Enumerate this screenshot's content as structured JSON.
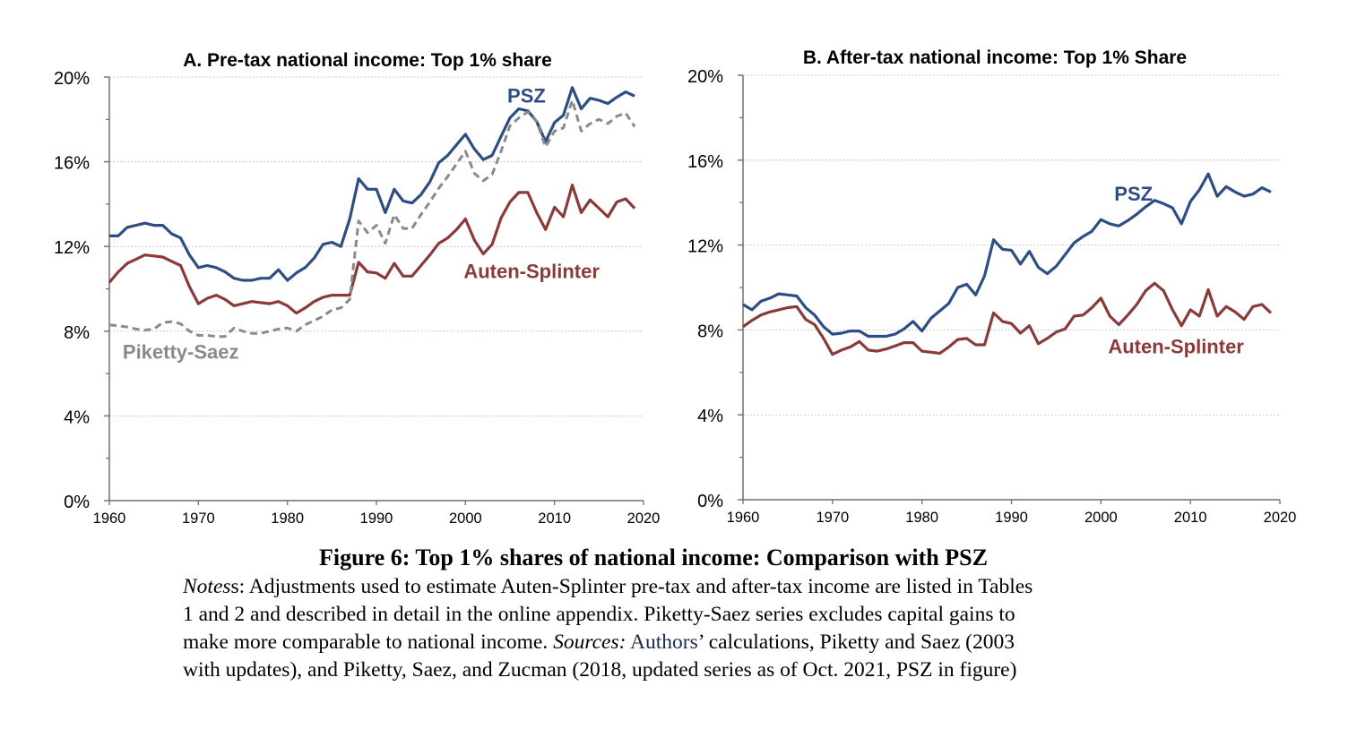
{
  "figure": {
    "title": "Figure 6: Top 1% shares of national income: Comparison with PSZ",
    "notes_label": "Notes",
    "notes_text_1": "s: Adjustments used to estimate Auten-Splinter pre-tax and after-tax income are listed in Tables",
    "notes_line_2": "1 and 2 and described in detail in the online appendix. Piketty-Saez series excludes capital gains to",
    "notes_line_3a": "make more comparable to national income. ",
    "sources_label": "Sources:",
    "notes_line_3b": " Authors",
    "notes_line_3c": "’ calculations, Piketty and Saez (2003",
    "notes_line_4": "with updates), and Piketty, Saez, and Zucman (2018, updated series as of Oct. 2021, PSZ in figure)"
  },
  "colors": {
    "psz": "#2e4d85",
    "auten_splinter": "#8b3a3a",
    "piketty_saez": "#8a8a8a",
    "axis": "#6e6e6e",
    "grid": "#c8c8c8"
  },
  "chart_data": [
    {
      "type": "line",
      "title": "A. Pre-tax national income: Top 1% share",
      "xlabel": "",
      "ylabel": "",
      "xlim": [
        1960,
        2020
      ],
      "ylim": [
        0,
        20
      ],
      "xticks": [
        1960,
        1970,
        1980,
        1990,
        2000,
        2010,
        2020
      ],
      "xtick_labels": [
        "1960",
        "1970",
        "1980",
        "1990",
        "2000",
        "2010",
        "2020"
      ],
      "yticks": [
        0,
        4,
        8,
        12,
        16,
        20
      ],
      "ytick_labels": [
        "0%",
        "4%",
        "8%",
        "12%",
        "16%",
        "20%"
      ],
      "yminor_ticks": [
        2,
        6,
        10,
        14,
        18
      ],
      "grid": "horizontal-dotted",
      "x": [
        1960,
        1961,
        1962,
        1963,
        1964,
        1965,
        1966,
        1967,
        1968,
        1969,
        1970,
        1971,
        1972,
        1973,
        1974,
        1975,
        1976,
        1977,
        1978,
        1979,
        1980,
        1981,
        1982,
        1983,
        1984,
        1985,
        1986,
        1987,
        1988,
        1989,
        1990,
        1991,
        1992,
        1993,
        1994,
        1995,
        1996,
        1997,
        1998,
        1999,
        2000,
        2001,
        2002,
        2003,
        2004,
        2005,
        2006,
        2007,
        2008,
        2009,
        2010,
        2011,
        2012,
        2013,
        2014,
        2015,
        2016,
        2017,
        2018,
        2019
      ],
      "series": [
        {
          "name": "PSZ",
          "style": "solid",
          "color_key": "psz",
          "label": "PSZ",
          "label_at": [
            2004.7,
            18.8
          ],
          "values": [
            12.5,
            12.5,
            12.9,
            13.0,
            13.1,
            13.0,
            13.0,
            12.6,
            12.4,
            11.6,
            11.0,
            11.1,
            11.0,
            10.8,
            10.5,
            10.4,
            10.4,
            10.5,
            10.5,
            10.9,
            10.4,
            10.75,
            11.0,
            11.45,
            12.1,
            12.2,
            12.0,
            13.3,
            15.2,
            14.7,
            14.7,
            13.6,
            14.7,
            14.15,
            14.05,
            14.45,
            15.05,
            15.95,
            16.3,
            16.8,
            17.3,
            16.6,
            16.1,
            16.3,
            17.2,
            18.07,
            18.5,
            18.4,
            17.9,
            16.95,
            17.85,
            18.2,
            19.5,
            18.5,
            19.0,
            18.9,
            18.75,
            19.05,
            19.3,
            19.1
          ]
        },
        {
          "name": "Auten-Splinter",
          "style": "solid",
          "color_key": "auten_splinter",
          "label": "Auten-Splinter",
          "label_at": [
            1999.8,
            10.5
          ],
          "values": [
            10.3,
            10.8,
            11.2,
            11.4,
            11.6,
            11.55,
            11.5,
            11.3,
            11.1,
            10.1,
            9.3,
            9.55,
            9.7,
            9.5,
            9.2,
            9.3,
            9.4,
            9.35,
            9.3,
            9.4,
            9.2,
            8.85,
            9.1,
            9.4,
            9.6,
            9.7,
            9.7,
            9.7,
            11.25,
            10.8,
            10.75,
            10.5,
            11.2,
            10.6,
            10.6,
            11.1,
            11.6,
            12.15,
            12.4,
            12.8,
            13.3,
            12.3,
            11.65,
            12.1,
            13.35,
            14.1,
            14.55,
            14.55,
            13.6,
            12.8,
            13.85,
            13.4,
            14.9,
            13.6,
            14.2,
            13.8,
            13.4,
            14.1,
            14.25,
            13.8
          ]
        },
        {
          "name": "Piketty-Saez",
          "style": "dashed",
          "color_key": "piketty_saez",
          "label": "Piketty-Saez",
          "label_at": [
            1961.5,
            6.7
          ],
          "values": [
            8.3,
            8.25,
            8.2,
            8.1,
            8.05,
            8.1,
            8.4,
            8.45,
            8.35,
            8.0,
            7.8,
            7.8,
            7.75,
            7.75,
            8.15,
            8.0,
            7.9,
            7.9,
            8.0,
            8.1,
            8.15,
            8.0,
            8.3,
            8.5,
            8.7,
            9.0,
            9.1,
            9.5,
            13.2,
            12.65,
            13.0,
            12.15,
            13.5,
            12.85,
            12.85,
            13.5,
            14.1,
            14.75,
            15.3,
            15.9,
            16.5,
            15.45,
            15.1,
            15.4,
            16.5,
            17.7,
            18.07,
            18.35,
            17.9,
            16.7,
            17.45,
            17.6,
            18.9,
            17.45,
            17.8,
            18.0,
            17.8,
            18.15,
            18.3,
            17.65
          ]
        }
      ]
    },
    {
      "type": "line",
      "title": "B. After-tax national income: Top 1% Share",
      "xlabel": "",
      "ylabel": "",
      "xlim": [
        1960,
        2020
      ],
      "ylim": [
        0,
        20
      ],
      "xticks": [
        1960,
        1970,
        1980,
        1990,
        2000,
        2010,
        2020
      ],
      "xtick_labels": [
        "1960",
        "1970",
        "1980",
        "1990",
        "2000",
        "2010",
        "2020"
      ],
      "yticks": [
        0,
        4,
        8,
        12,
        16,
        20
      ],
      "ytick_labels": [
        "0%",
        "4%",
        "8%",
        "12%",
        "16%",
        "20%"
      ],
      "yminor_ticks": [
        2,
        6,
        10,
        14,
        18
      ],
      "grid": "horizontal-dotted",
      "x": [
        1960,
        1961,
        1962,
        1963,
        1964,
        1965,
        1966,
        1967,
        1968,
        1969,
        1970,
        1971,
        1972,
        1973,
        1974,
        1975,
        1976,
        1977,
        1978,
        1979,
        1980,
        1981,
        1982,
        1983,
        1984,
        1985,
        1986,
        1987,
        1988,
        1989,
        1990,
        1991,
        1992,
        1993,
        1994,
        1995,
        1996,
        1997,
        1998,
        1999,
        2000,
        2001,
        2002,
        2003,
        2004,
        2005,
        2006,
        2007,
        2008,
        2009,
        2010,
        2011,
        2012,
        2013,
        2014,
        2015,
        2016,
        2017,
        2018,
        2019
      ],
      "series": [
        {
          "name": "PSZ",
          "style": "solid",
          "color_key": "psz",
          "label": "PSZ",
          "label_at": [
            2001.5,
            14.1
          ],
          "values": [
            9.2,
            8.95,
            9.35,
            9.5,
            9.7,
            9.65,
            9.6,
            9.05,
            8.7,
            8.15,
            7.8,
            7.85,
            7.95,
            7.95,
            7.7,
            7.7,
            7.7,
            7.8,
            8.05,
            8.4,
            7.95,
            8.55,
            8.9,
            9.25,
            10.0,
            10.15,
            9.65,
            10.55,
            12.25,
            11.8,
            11.75,
            11.1,
            11.7,
            10.95,
            10.65,
            11.0,
            11.55,
            12.1,
            12.4,
            12.65,
            13.2,
            13.0,
            12.9,
            13.15,
            13.45,
            13.8,
            14.1,
            13.95,
            13.75,
            13.0,
            14.05,
            14.6,
            15.35,
            14.3,
            14.75,
            14.5,
            14.3,
            14.4,
            14.7,
            14.5
          ]
        },
        {
          "name": "Auten-Splinter",
          "style": "solid",
          "color_key": "auten_splinter",
          "label": "Auten-Splinter",
          "label_at": [
            2000.8,
            6.9
          ],
          "values": [
            8.15,
            8.45,
            8.7,
            8.85,
            8.95,
            9.05,
            9.1,
            8.5,
            8.25,
            7.6,
            6.85,
            7.05,
            7.2,
            7.45,
            7.05,
            7.0,
            7.1,
            7.25,
            7.4,
            7.4,
            7.0,
            6.95,
            6.9,
            7.2,
            7.55,
            7.6,
            7.3,
            7.3,
            8.8,
            8.4,
            8.3,
            7.85,
            8.2,
            7.35,
            7.6,
            7.9,
            8.05,
            8.65,
            8.7,
            9.05,
            9.5,
            8.65,
            8.25,
            8.7,
            9.2,
            9.85,
            10.2,
            9.85,
            8.95,
            8.2,
            8.95,
            8.65,
            9.9,
            8.65,
            9.1,
            8.85,
            8.5,
            9.1,
            9.2,
            8.8
          ]
        }
      ]
    }
  ]
}
